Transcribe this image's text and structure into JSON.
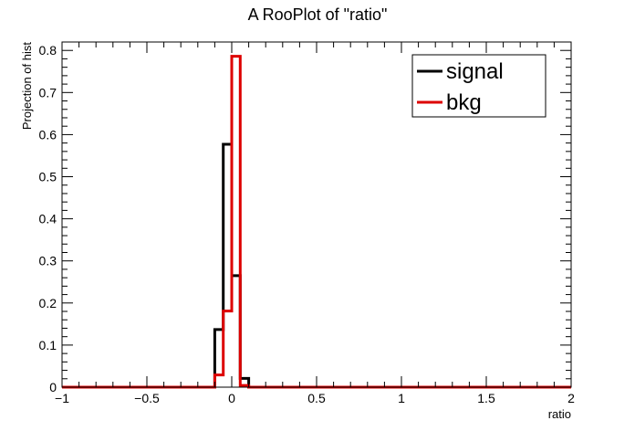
{
  "chart_data": {
    "type": "line",
    "title": "A RooPlot of \"ratio\"",
    "xlabel": "ratio",
    "ylabel": "Projection of hist",
    "xlim": [
      -1,
      2
    ],
    "ylim": [
      0,
      0.82
    ],
    "x_ticks": [
      -1,
      -0.5,
      0,
      0.5,
      1,
      1.5,
      2
    ],
    "x_tick_labels": [
      "−1",
      "−0.5",
      "0",
      "0.5",
      "1",
      "1.5",
      "2"
    ],
    "y_ticks": [
      0,
      0.1,
      0.2,
      0.3,
      0.4,
      0.5,
      0.6,
      0.7,
      0.8
    ],
    "y_tick_labels": [
      "0",
      "0.1",
      "0.2",
      "0.3",
      "0.4",
      "0.5",
      "0.6",
      "0.7",
      "0.8"
    ],
    "bin_edges": [
      -1,
      -0.1,
      -0.05,
      0,
      0.05,
      0.1,
      2
    ],
    "series": [
      {
        "name": "signal",
        "color": "#000000",
        "values": [
          0,
          0.137,
          0.577,
          0.265,
          0.021,
          0
        ]
      },
      {
        "name": "bkg",
        "color": "#dd0000",
        "values": [
          0,
          0.029,
          0.181,
          0.786,
          0.004,
          0
        ]
      }
    ],
    "legend": {
      "position": "top-right"
    },
    "grid": false
  }
}
